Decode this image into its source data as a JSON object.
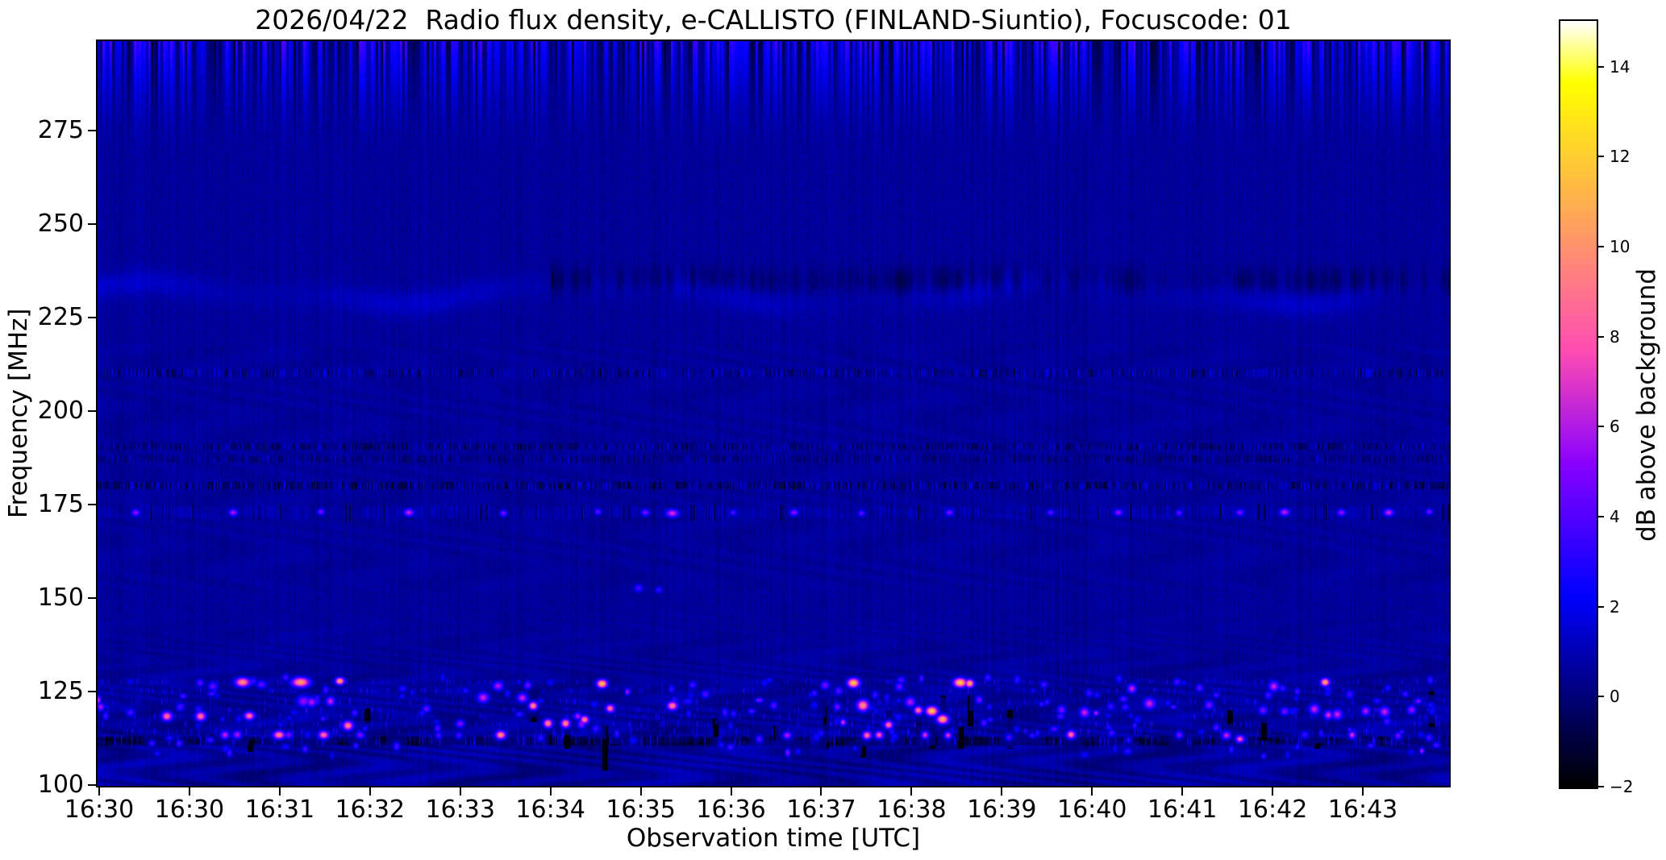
{
  "chart_data": {
    "type": "heatmap",
    "subtype": "radio-spectrogram",
    "title": "2026/04/22  Radio flux density, e-CALLISTO (FINLAND-Siuntio), Focuscode: 01",
    "date": "2026/04/22",
    "instrument": "e-CALLISTO",
    "station": "FINLAND-Siuntio",
    "focuscode": "01",
    "xlabel": "Observation time [UTC]",
    "ylabel": "Frequency [MHz]",
    "x_tick_labels": [
      "16:30",
      "16:30",
      "16:31",
      "16:32",
      "16:33",
      "16:34",
      "16:35",
      "16:36",
      "16:37",
      "16:38",
      "16:39",
      "16:40",
      "16:41",
      "16:42",
      "16:43"
    ],
    "y_tick_values": [
      100,
      125,
      150,
      175,
      200,
      225,
      250,
      275
    ],
    "freq_range_mhz": [
      100,
      299
    ],
    "value_range_db": [
      -2,
      15
    ],
    "background_level_db": 0.5,
    "colormap": "gnuplot2",
    "colorbar": {
      "label": "dB above background",
      "tick_values": [
        -2,
        0,
        2,
        4,
        6,
        8,
        10,
        12,
        14
      ]
    },
    "features": [
      {
        "kind": "vertical-stripe-band",
        "freq_mhz": [
          266,
          299
        ],
        "note": "strong alternating bright/dark vertical striping fading downward from top edge"
      },
      {
        "kind": "bright-wavy-band",
        "freq_mhz": 232,
        "note": "light-blue undulating horizontal band across full width"
      },
      {
        "kind": "dark-blotchy-band",
        "freq_mhz": [
          228,
          241
        ],
        "time_frac": [
          0.34,
          1.0
        ],
        "note": "blackish patchy band from ~16:36 onward, brief gap near 16:41"
      },
      {
        "kind": "speckle-line",
        "freq_mhz": 210.3,
        "note": "dark/bright speckled interference line"
      },
      {
        "kind": "speckle-line",
        "freq_mhz": 190.6
      },
      {
        "kind": "speckle-line",
        "freq_mhz": 187.3
      },
      {
        "kind": "speckle-line",
        "freq_mhz": 180.2,
        "note": "dark speckles"
      },
      {
        "kind": "burst-line",
        "freq_mhz": 173,
        "note": "row of blue/magenta blobs with black micro-dropouts"
      },
      {
        "kind": "dark-line",
        "freq_mhz": 111.9,
        "note": "dark horizontal band"
      },
      {
        "kind": "moire-ripples",
        "freq_mhz": [
          100,
          152
        ],
        "note": "wavy moire interference arcs"
      },
      {
        "kind": "rfi-band",
        "freq_mhz": [
          108,
          129
        ],
        "note": "dense bright RFI bursts: blue, magenta, orange and yellow blobs with black dropout streaks"
      }
    ],
    "rfi_bursts": [
      [
        0.002,
        121,
        5,
        1.6,
        6
      ],
      [
        0.024,
        119.5,
        6,
        1.6,
        4
      ],
      [
        0.051,
        118.5,
        7,
        1.8,
        9
      ],
      [
        0.061,
        121,
        6,
        1.6,
        4
      ],
      [
        0.076,
        118.5,
        7,
        1.8,
        9
      ],
      [
        0.085,
        126.5,
        7,
        1.8,
        4.5
      ],
      [
        0.094,
        113.5,
        6,
        1.6,
        6.5
      ],
      [
        0.103,
        113.6,
        6,
        1.6,
        6
      ],
      [
        0.107,
        127.6,
        10,
        1.8,
        10
      ],
      [
        0.112,
        118.6,
        7,
        1.6,
        9
      ],
      [
        0.121,
        127,
        7,
        1.6,
        4.5
      ],
      [
        0.134,
        113.5,
        8,
        1.6,
        9.5
      ],
      [
        0.141,
        113.5,
        6,
        1.5,
        5
      ],
      [
        0.15,
        127.6,
        12,
        1.9,
        10.5
      ],
      [
        0.152,
        122.5,
        9,
        2.2,
        5.5
      ],
      [
        0.158,
        122.3,
        7,
        2,
        6
      ],
      [
        0.167,
        113.5,
        7,
        1.6,
        9
      ],
      [
        0.172,
        122.5,
        6,
        1.8,
        6.5
      ],
      [
        0.179,
        127.9,
        6,
        1.4,
        11
      ],
      [
        0.185,
        116,
        7,
        1.8,
        9.5
      ],
      [
        0.194,
        113.5,
        6,
        1.5,
        5
      ],
      [
        0.221,
        110.3,
        5,
        1.4,
        4
      ],
      [
        0.243,
        120.5,
        6,
        1.6,
        4.5
      ],
      [
        0.252,
        113.4,
        5,
        1.4,
        4
      ],
      [
        0.268,
        116.5,
        6,
        1.6,
        5
      ],
      [
        0.285,
        123.5,
        8,
        2,
        6.5
      ],
      [
        0.296,
        126.6,
        7,
        1.8,
        6
      ],
      [
        0.298,
        113.5,
        7,
        1.6,
        10
      ],
      [
        0.314,
        123.4,
        7,
        1.8,
        6.5
      ],
      [
        0.318,
        126.8,
        5,
        1.5,
        5
      ],
      [
        0.322,
        121.3,
        6,
        1.6,
        10
      ],
      [
        0.333,
        116.6,
        6,
        1.7,
        10
      ],
      [
        0.346,
        116.6,
        6,
        1.7,
        10
      ],
      [
        0.355,
        118.5,
        5,
        1.5,
        6
      ],
      [
        0.36,
        117.6,
        6,
        1.6,
        9.5
      ],
      [
        0.373,
        127.2,
        7,
        1.6,
        12
      ],
      [
        0.379,
        120.6,
        6,
        1.6,
        9
      ],
      [
        0.4,
        152.8,
        6,
        1.6,
        4
      ],
      [
        0.415,
        152.3,
        5,
        1.4,
        3.5
      ],
      [
        0.425,
        121.3,
        7,
        1.7,
        9.5
      ],
      [
        0.44,
        126.9,
        5,
        1.5,
        4
      ],
      [
        0.468,
        110.2,
        5,
        1.4,
        4
      ],
      [
        0.5,
        121.4,
        5,
        1.5,
        4.5
      ],
      [
        0.51,
        113.4,
        6,
        1.5,
        6
      ],
      [
        0.538,
        126.8,
        6,
        1.7,
        5
      ],
      [
        0.547,
        121,
        5,
        1.5,
        5
      ],
      [
        0.559,
        127.4,
        8,
        1.8,
        12
      ],
      [
        0.566,
        121.4,
        8,
        2.2,
        10
      ],
      [
        0.569,
        113.4,
        6,
        1.6,
        9
      ],
      [
        0.578,
        113.5,
        6,
        1.6,
        8
      ],
      [
        0.585,
        116.2,
        6,
        1.6,
        9
      ],
      [
        0.593,
        126.4,
        6,
        1.8,
        4.5
      ],
      [
        0.601,
        122.3,
        7,
        2,
        6
      ],
      [
        0.607,
        120.1,
        6,
        1.6,
        9
      ],
      [
        0.612,
        113.5,
        5,
        1.5,
        7
      ],
      [
        0.617,
        119.9,
        8,
        1.8,
        12
      ],
      [
        0.625,
        117.7,
        8,
        1.8,
        11
      ],
      [
        0.629,
        113.4,
        5,
        1.5,
        7
      ],
      [
        0.638,
        127.5,
        9,
        1.8,
        12
      ],
      [
        0.645,
        127.3,
        6,
        1.6,
        11
      ],
      [
        0.652,
        122.9,
        5,
        1.6,
        5
      ],
      [
        0.674,
        112.9,
        5,
        1.5,
        4
      ],
      [
        0.7,
        127,
        5,
        1.5,
        4
      ],
      [
        0.713,
        120.2,
        6,
        1.8,
        5
      ],
      [
        0.72,
        113.6,
        6,
        1.6,
        9
      ],
      [
        0.73,
        119.5,
        7,
        2,
        6.5
      ],
      [
        0.75,
        114,
        5,
        1.5,
        4
      ],
      [
        0.765,
        125.9,
        6,
        1.8,
        6.5
      ],
      [
        0.778,
        121.9,
        8,
        2.2,
        6.5
      ],
      [
        0.8,
        113.5,
        5,
        1.5,
        5
      ],
      [
        0.815,
        126.1,
        5,
        1.6,
        4.5
      ],
      [
        0.822,
        121.5,
        6,
        1.8,
        5
      ],
      [
        0.835,
        113.4,
        6,
        1.6,
        6.5
      ],
      [
        0.845,
        112.4,
        6,
        1.5,
        8
      ],
      [
        0.862,
        120.1,
        6,
        1.8,
        5
      ],
      [
        0.87,
        126.5,
        7,
        2,
        6.5
      ],
      [
        0.878,
        119.8,
        6,
        1.6,
        5
      ],
      [
        0.9,
        120.4,
        7,
        2,
        6.5
      ],
      [
        0.908,
        127.6,
        6,
        1.5,
        11
      ],
      [
        0.917,
        119,
        7,
        2,
        6.5
      ],
      [
        0.928,
        113.5,
        5,
        1.5,
        7
      ],
      [
        0.938,
        119.9,
        6,
        1.8,
        6
      ],
      [
        0.952,
        119.7,
        7,
        2,
        6.5
      ],
      [
        0.962,
        113.3,
        5,
        1.5,
        5
      ],
      [
        0.972,
        120.2,
        6,
        1.8,
        5.5
      ],
      [
        0.985,
        112.8,
        5,
        1.5,
        4
      ],
      [
        0.028,
        173,
        6,
        1.4,
        5.5
      ],
      [
        0.1,
        173,
        6,
        1.4,
        6
      ],
      [
        0.165,
        173.2,
        5,
        1.3,
        5
      ],
      [
        0.23,
        173,
        7,
        1.5,
        6.5
      ],
      [
        0.3,
        172.8,
        5,
        1.3,
        5
      ],
      [
        0.37,
        173.2,
        5,
        1.3,
        4.5
      ],
      [
        0.405,
        173,
        6,
        1.4,
        5
      ],
      [
        0.425,
        172.8,
        9,
        1.6,
        6.8
      ],
      [
        0.47,
        173,
        5,
        1.3,
        4
      ],
      [
        0.515,
        173,
        6,
        1.4,
        5.5
      ],
      [
        0.565,
        172.8,
        5,
        1.3,
        4.5
      ],
      [
        0.63,
        173,
        6,
        1.4,
        5
      ],
      [
        0.705,
        173,
        5,
        1.3,
        4.5
      ],
      [
        0.755,
        173,
        6,
        1.4,
        5.5
      ],
      [
        0.8,
        172.9,
        5,
        1.3,
        4.5
      ],
      [
        0.845,
        173,
        6,
        1.4,
        5
      ],
      [
        0.878,
        173.1,
        7,
        1.5,
        6.3
      ],
      [
        0.92,
        173,
        6,
        1.4,
        5.5
      ],
      [
        0.955,
        173,
        7,
        1.5,
        6.5
      ],
      [
        0.985,
        173.2,
        5,
        1.3,
        5
      ]
    ],
    "dropouts": [
      [
        0.113,
        109,
        112
      ],
      [
        0.199,
        116.5,
        120.5
      ],
      [
        0.322,
        117,
        125.5,
        12
      ],
      [
        0.3335,
        111,
        117.5
      ],
      [
        0.347,
        110,
        117
      ],
      [
        0.3755,
        104,
        116
      ],
      [
        0.4,
        111,
        114.5
      ],
      [
        0.457,
        110.5,
        118
      ],
      [
        0.502,
        112,
        116
      ],
      [
        0.5385,
        110,
        121
      ],
      [
        0.5665,
        107.5,
        113.5
      ],
      [
        0.5855,
        110.5,
        120
      ],
      [
        0.6075,
        112,
        122
      ],
      [
        0.6175,
        110,
        116.5
      ],
      [
        0.6255,
        114,
        124
      ],
      [
        0.6385,
        110,
        115.5
      ],
      [
        0.6455,
        116,
        124
      ],
      [
        0.675,
        110,
        120
      ],
      [
        0.838,
        115,
        120
      ],
      [
        0.863,
        112,
        118
      ],
      [
        0.902,
        110,
        116
      ],
      [
        0.987,
        114,
        126
      ]
    ]
  }
}
